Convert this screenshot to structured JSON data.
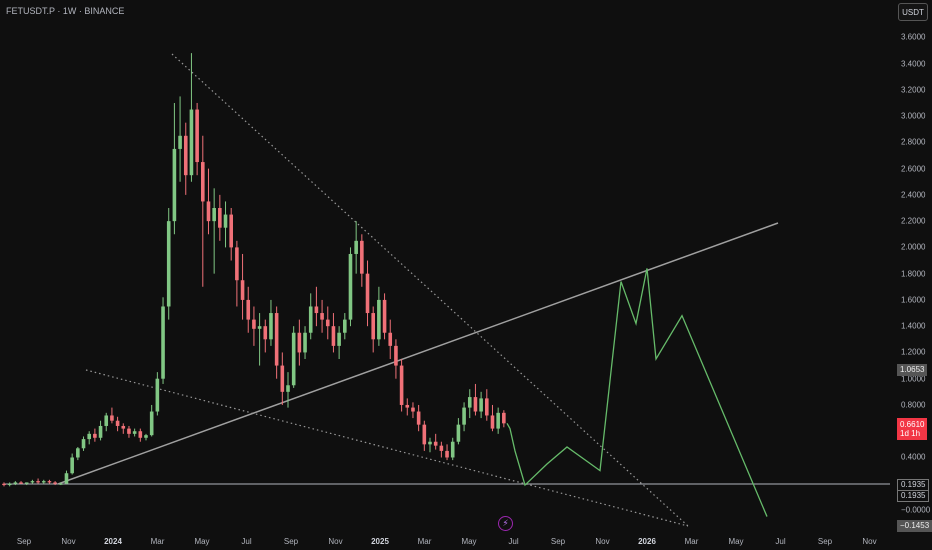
{
  "header": {
    "title": "FETUSDT.P · 1W · BINANCE",
    "currency_button": "USDT"
  },
  "badges": {
    "grey_price": "1.0653",
    "support_top": "0.1935",
    "support_bottom": "0.1935",
    "last_price": "0.6610",
    "countdown": "1d 1h",
    "lower_label": "−0.1453"
  },
  "icons": {
    "replay": "lightning-bolt-icon"
  },
  "colors": {
    "up": "#81c784",
    "down": "#f07178",
    "projection": "#66bb6a",
    "line": "#b2b5be",
    "bg": "#0f0f0f"
  },
  "chart_data": {
    "type": "candlestick",
    "symbol": "FETUSDT.P",
    "interval": "1W",
    "exchange": "BINANCE",
    "y_ticks": [
      "3.6000",
      "3.4000",
      "3.2000",
      "3.0000",
      "2.8000",
      "2.6000",
      "2.4000",
      "2.2000",
      "2.0000",
      "1.8000",
      "1.6000",
      "1.4000",
      "1.2000",
      "1.0000",
      "0.8000",
      "0.6000",
      "0.4000",
      "0.2000",
      "−0.0000"
    ],
    "x_ticks": [
      {
        "label": "Sep",
        "bold": false
      },
      {
        "label": "Nov",
        "bold": false
      },
      {
        "label": "2024",
        "bold": true
      },
      {
        "label": "Mar",
        "bold": false
      },
      {
        "label": "May",
        "bold": false
      },
      {
        "label": "Jul",
        "bold": false
      },
      {
        "label": "Sep",
        "bold": false
      },
      {
        "label": "Nov",
        "bold": false
      },
      {
        "label": "2025",
        "bold": true
      },
      {
        "label": "Mar",
        "bold": false
      },
      {
        "label": "May",
        "bold": false
      },
      {
        "label": "Jul",
        "bold": false
      },
      {
        "label": "Sep",
        "bold": false
      },
      {
        "label": "Nov",
        "bold": false
      },
      {
        "label": "2026",
        "bold": true
      },
      {
        "label": "Mar",
        "bold": false
      },
      {
        "label": "May",
        "bold": false
      },
      {
        "label": "Jul",
        "bold": false
      },
      {
        "label": "Sep",
        "bold": false
      },
      {
        "label": "Nov",
        "bold": false
      }
    ],
    "ylim": [
      -0.2,
      3.7
    ],
    "candles": [
      [
        0.2,
        0.21,
        0.18,
        0.19
      ],
      [
        0.19,
        0.21,
        0.18,
        0.2
      ],
      [
        0.2,
        0.22,
        0.19,
        0.21
      ],
      [
        0.21,
        0.22,
        0.2,
        0.2
      ],
      [
        0.2,
        0.21,
        0.19,
        0.21
      ],
      [
        0.21,
        0.23,
        0.2,
        0.22
      ],
      [
        0.22,
        0.24,
        0.2,
        0.21
      ],
      [
        0.21,
        0.23,
        0.2,
        0.22
      ],
      [
        0.22,
        0.23,
        0.2,
        0.21
      ],
      [
        0.21,
        0.22,
        0.19,
        0.2
      ],
      [
        0.2,
        0.21,
        0.19,
        0.2
      ],
      [
        0.2,
        0.3,
        0.2,
        0.28
      ],
      [
        0.28,
        0.43,
        0.27,
        0.4
      ],
      [
        0.4,
        0.48,
        0.38,
        0.47
      ],
      [
        0.47,
        0.56,
        0.45,
        0.54
      ],
      [
        0.54,
        0.6,
        0.5,
        0.58
      ],
      [
        0.58,
        0.62,
        0.52,
        0.55
      ],
      [
        0.55,
        0.68,
        0.53,
        0.64
      ],
      [
        0.64,
        0.74,
        0.6,
        0.72
      ],
      [
        0.72,
        0.78,
        0.66,
        0.68
      ],
      [
        0.68,
        0.71,
        0.6,
        0.64
      ],
      [
        0.64,
        0.66,
        0.58,
        0.62
      ],
      [
        0.62,
        0.64,
        0.55,
        0.58
      ],
      [
        0.58,
        0.62,
        0.56,
        0.6
      ],
      [
        0.6,
        0.62,
        0.52,
        0.55
      ],
      [
        0.55,
        0.58,
        0.53,
        0.57
      ],
      [
        0.57,
        0.8,
        0.56,
        0.75
      ],
      [
        0.75,
        1.05,
        0.72,
        1.0
      ],
      [
        1.0,
        1.62,
        0.96,
        1.55
      ],
      [
        1.55,
        2.3,
        1.45,
        2.2
      ],
      [
        2.2,
        3.1,
        2.1,
        2.75
      ],
      [
        2.75,
        3.15,
        2.5,
        2.85
      ],
      [
        2.85,
        2.95,
        2.4,
        2.55
      ],
      [
        2.55,
        3.48,
        2.5,
        3.05
      ],
      [
        3.05,
        3.1,
        2.55,
        2.65
      ],
      [
        2.65,
        2.85,
        1.7,
        2.35
      ],
      [
        2.35,
        2.6,
        2.1,
        2.2
      ],
      [
        2.2,
        2.45,
        1.8,
        2.3
      ],
      [
        2.3,
        2.4,
        2.05,
        2.15
      ],
      [
        2.15,
        2.35,
        2.0,
        2.25
      ],
      [
        2.25,
        2.3,
        1.9,
        2.0
      ],
      [
        2.0,
        2.05,
        1.55,
        1.75
      ],
      [
        1.75,
        1.95,
        1.45,
        1.6
      ],
      [
        1.6,
        1.7,
        1.35,
        1.45
      ],
      [
        1.45,
        1.55,
        1.25,
        1.38
      ],
      [
        1.38,
        1.5,
        1.1,
        1.4
      ],
      [
        1.4,
        1.45,
        1.2,
        1.3
      ],
      [
        1.3,
        1.6,
        1.25,
        1.5
      ],
      [
        1.5,
        1.55,
        1.0,
        1.1
      ],
      [
        1.1,
        1.2,
        0.8,
        0.9
      ],
      [
        0.9,
        1.05,
        0.78,
        0.95
      ],
      [
        0.95,
        1.4,
        0.93,
        1.35
      ],
      [
        1.35,
        1.45,
        1.1,
        1.2
      ],
      [
        1.2,
        1.4,
        1.15,
        1.35
      ],
      [
        1.35,
        1.65,
        1.3,
        1.55
      ],
      [
        1.55,
        1.7,
        1.4,
        1.5
      ],
      [
        1.5,
        1.6,
        1.35,
        1.45
      ],
      [
        1.45,
        1.55,
        1.3,
        1.4
      ],
      [
        1.4,
        1.5,
        1.2,
        1.25
      ],
      [
        1.25,
        1.4,
        1.15,
        1.35
      ],
      [
        1.35,
        1.5,
        1.3,
        1.45
      ],
      [
        1.45,
        2.0,
        1.4,
        1.95
      ],
      [
        1.95,
        2.2,
        1.8,
        2.05
      ],
      [
        2.05,
        2.1,
        1.7,
        1.8
      ],
      [
        1.8,
        1.9,
        1.4,
        1.5
      ],
      [
        1.5,
        1.55,
        1.2,
        1.3
      ],
      [
        1.3,
        1.7,
        1.25,
        1.6
      ],
      [
        1.6,
        1.65,
        1.3,
        1.35
      ],
      [
        1.35,
        1.45,
        1.15,
        1.25
      ],
      [
        1.25,
        1.3,
        1.0,
        1.1
      ],
      [
        1.1,
        1.15,
        0.75,
        0.8
      ],
      [
        0.8,
        0.85,
        0.72,
        0.78
      ],
      [
        0.78,
        0.82,
        0.7,
        0.75
      ],
      [
        0.75,
        0.8,
        0.6,
        0.65
      ],
      [
        0.65,
        0.68,
        0.45,
        0.5
      ],
      [
        0.5,
        0.55,
        0.44,
        0.52
      ],
      [
        0.52,
        0.58,
        0.46,
        0.49
      ],
      [
        0.49,
        0.52,
        0.4,
        0.45
      ],
      [
        0.45,
        0.5,
        0.38,
        0.4
      ],
      [
        0.4,
        0.55,
        0.38,
        0.52
      ],
      [
        0.52,
        0.7,
        0.5,
        0.65
      ],
      [
        0.65,
        0.82,
        0.6,
        0.78
      ],
      [
        0.78,
        0.92,
        0.7,
        0.86
      ],
      [
        0.86,
        0.96,
        0.72,
        0.75
      ],
      [
        0.75,
        0.9,
        0.7,
        0.85
      ],
      [
        0.85,
        0.92,
        0.68,
        0.72
      ],
      [
        0.72,
        0.8,
        0.6,
        0.62
      ],
      [
        0.62,
        0.78,
        0.58,
        0.74
      ],
      [
        0.74,
        0.76,
        0.63,
        0.66
      ]
    ],
    "projection_path": [
      [
        0.66,
        0.66
      ],
      [
        0.62,
        0.62
      ],
      [
        0.45,
        0.45
      ],
      [
        0.19,
        0.19
      ],
      [
        0.35,
        0.35
      ],
      [
        0.48,
        0.48
      ],
      [
        0.3,
        0.3
      ],
      [
        1.74,
        1.74
      ],
      [
        1.42,
        1.42
      ],
      [
        1.84,
        1.84
      ],
      [
        1.15,
        1.15
      ],
      [
        1.48,
        1.48
      ],
      [
        -0.05,
        -0.05
      ]
    ],
    "trendlines": [
      "ascending support line",
      "descending resistance line",
      "lower descending support line",
      "horizontal support at 0.1935"
    ]
  }
}
